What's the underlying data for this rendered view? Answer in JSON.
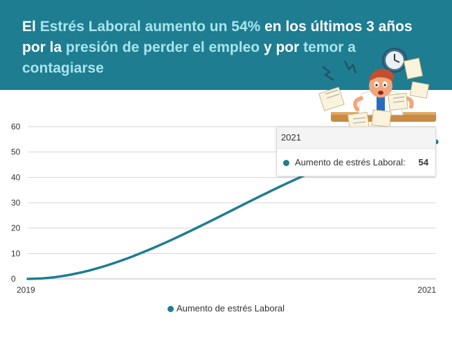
{
  "header": {
    "title_parts": [
      {
        "text": "El ",
        "highlight": false
      },
      {
        "text": "Estrés Laboral",
        "highlight": true
      },
      {
        "text": " aumento un 54% ",
        "highlight": true
      },
      {
        "text": "en los últimos 3 años por la ",
        "highlight": false
      },
      {
        "text": "presión de perder el empleo",
        "highlight": true
      },
      {
        "text": " y por ",
        "highlight": false
      },
      {
        "text": "temor a contagiarse",
        "highlight": true
      }
    ]
  },
  "colors": {
    "header_bg": "#1e7d90",
    "highlight": "#a9e4ee",
    "series": "#1e7d90"
  },
  "tooltip": {
    "header": "2021",
    "label": "Aumento de estrés Laboral:",
    "value": "54"
  },
  "legend": {
    "label": "Aumento de estrés Laboral"
  },
  "chart_data": {
    "type": "line",
    "x": [
      "2019",
      "2021"
    ],
    "series": [
      {
        "name": "Aumento de estrés Laboral",
        "values": [
          0,
          54
        ],
        "smooth": "s-curve"
      }
    ],
    "ylim": [
      0,
      60
    ],
    "yticks": [
      0,
      10,
      20,
      30,
      40,
      50,
      60
    ],
    "grid": true,
    "legend_position": "bottom",
    "xlabel": "",
    "ylabel": ""
  }
}
